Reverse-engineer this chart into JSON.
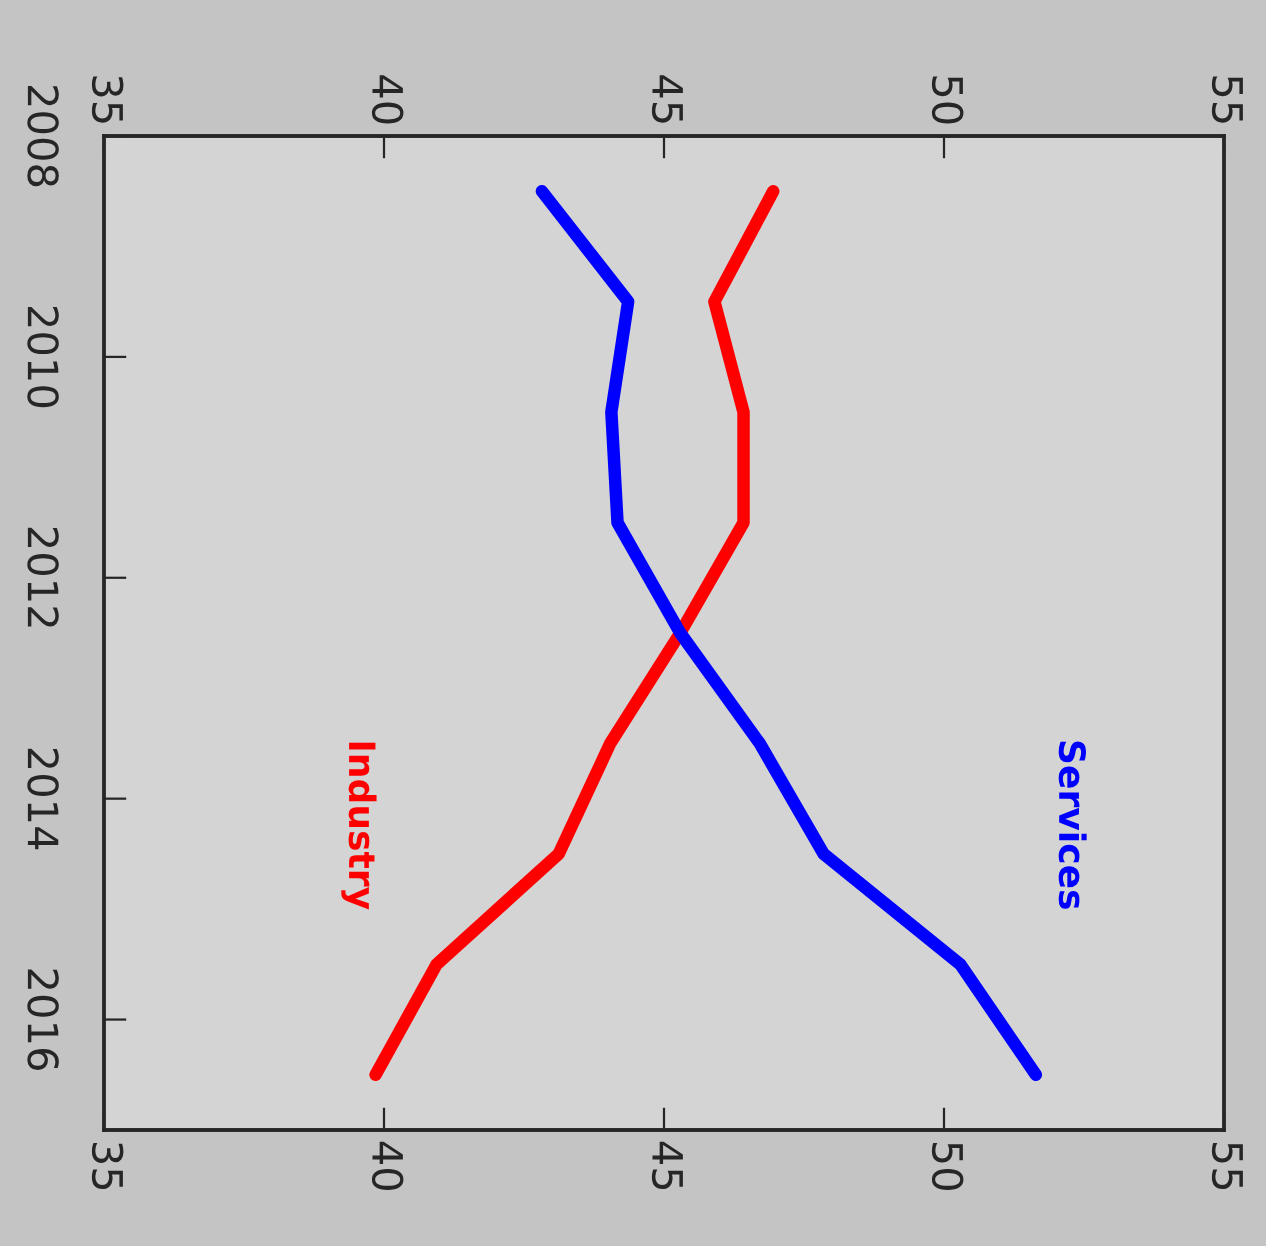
{
  "chart_data": {
    "type": "line",
    "orientation": "horizontal",
    "x": [
      2008.5,
      2009.5,
      2010.5,
      2011.5,
      2012.5,
      2013.5,
      2014.5,
      2015.5,
      2016.5
    ],
    "series": [
      {
        "name": "Industry",
        "color": "#ff0000",
        "values": [
          46.95,
          45.9,
          46.42,
          46.42,
          45.29,
          44.04,
          43.12,
          40.94,
          39.85
        ]
      },
      {
        "name": "Services",
        "color": "#0000ff",
        "values": [
          42.82,
          44.36,
          44.06,
          44.17,
          45.29,
          46.71,
          47.85,
          50.29,
          51.64
        ]
      }
    ],
    "xlim": [
      35,
      55
    ],
    "xticks": [
      35,
      40,
      45,
      50,
      55
    ],
    "x2lim": [
      35,
      55
    ],
    "x2ticks": [
      35,
      40,
      45,
      50,
      55
    ],
    "ylim": [
      2017,
      2008
    ],
    "yticks": [
      2008,
      2010,
      2012,
      2014,
      2016
    ],
    "grid": false,
    "legend": false,
    "line_style": "solid",
    "marker": "none"
  }
}
